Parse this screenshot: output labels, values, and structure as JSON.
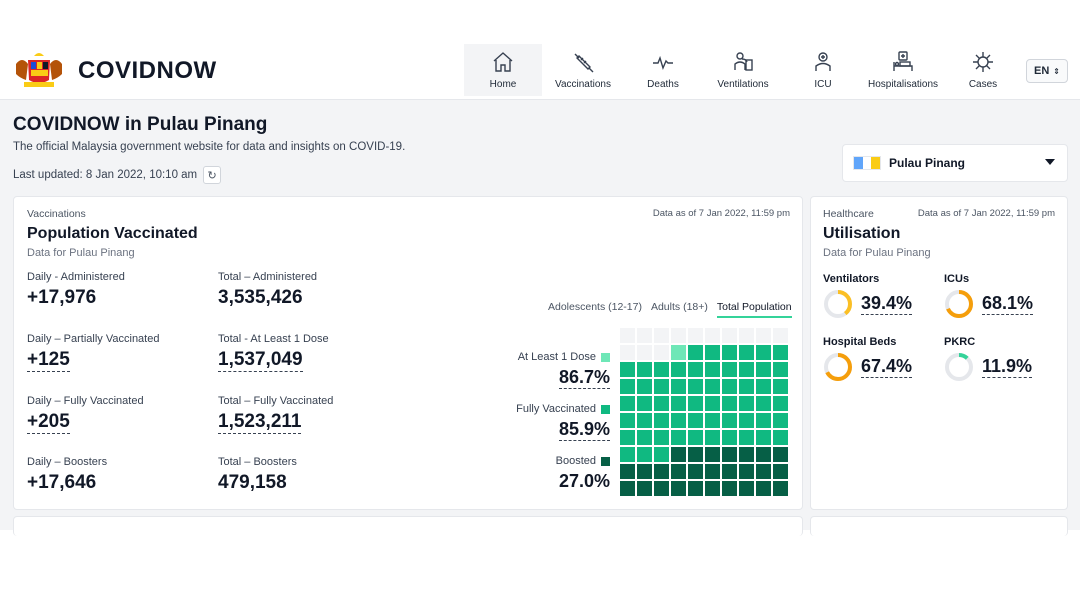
{
  "header": {
    "brand": "COVIDNOW",
    "nav": [
      {
        "label": "Home",
        "icon": "home-icon",
        "active": true
      },
      {
        "label": "Vaccinations",
        "icon": "syringe-icon"
      },
      {
        "label": "Deaths",
        "icon": "pulse-icon"
      },
      {
        "label": "Ventilations",
        "icon": "ventilator-icon"
      },
      {
        "label": "ICU",
        "icon": "icu-icon"
      },
      {
        "label": "Hospitalisations",
        "icon": "hospital-bed-icon"
      },
      {
        "label": "Cases",
        "icon": "virus-icon"
      }
    ],
    "language": "EN"
  },
  "page": {
    "title": "COVIDNOW in Pulau Pinang",
    "subtitle": "The official Malaysia government website for data and insights on COVID-19.",
    "last_updated": "Last updated: 8 Jan 2022, 10:10 am",
    "state_select": "Pulau Pinang"
  },
  "vaccination": {
    "eyebrow": "Vaccinations",
    "title": "Population Vaccinated",
    "subtitle": "Data for Pulau Pinang",
    "as_of": "Data as of 7 Jan 2022, 11:59 pm",
    "stats": [
      {
        "label": "Daily - Administered",
        "value": "+17,976",
        "dotted": false
      },
      {
        "label": "Total – Administered",
        "value": "3,535,426",
        "dotted": false
      },
      {
        "label": "Daily – Partially Vaccinated",
        "value": "+125",
        "dotted": true
      },
      {
        "label": "Total - At Least 1 Dose",
        "value": "1,537,049",
        "dotted": true
      },
      {
        "label": "Daily – Fully Vaccinated",
        "value": "+205",
        "dotted": true
      },
      {
        "label": "Total – Fully Vaccinated",
        "value": "1,523,211",
        "dotted": true
      },
      {
        "label": "Daily – Boosters",
        "value": "+17,646",
        "dotted": false
      },
      {
        "label": "Total – Boosters",
        "value": "479,158",
        "dotted": false
      }
    ],
    "tabs": [
      "Adolescents (12-17)",
      "Adults (18+)",
      "Total Population"
    ],
    "active_tab": 2,
    "legend": [
      {
        "label": "At Least 1 Dose",
        "value": "86.7%",
        "pct": 86.7,
        "color": "#6ee7b7",
        "dotted": true
      },
      {
        "label": "Fully Vaccinated",
        "value": "85.9%",
        "pct": 85.9,
        "color": "#10b981",
        "dotted": true
      },
      {
        "label": "Boosted",
        "value": "27.0%",
        "pct": 27.0,
        "color": "#065f46",
        "dotted": false
      }
    ]
  },
  "healthcare": {
    "eyebrow": "Healthcare",
    "title": "Utilisation",
    "subtitle": "Data for Pulau Pinang",
    "as_of": "Data as of 7 Jan 2022, 11:59 pm",
    "items": [
      {
        "label": "Ventilators",
        "value": "39.4%",
        "pct": 39.4,
        "color": "#fbbf24"
      },
      {
        "label": "ICUs",
        "value": "68.1%",
        "pct": 68.1,
        "color": "#f59e0b"
      },
      {
        "label": "Hospital Beds",
        "value": "67.4%",
        "pct": 67.4,
        "color": "#f59e0b"
      },
      {
        "label": "PKRC",
        "value": "11.9%",
        "pct": 11.9,
        "color": "#34d399"
      }
    ]
  },
  "colors": {
    "accent": "#34d399",
    "ring_track": "#e5e7eb",
    "waffle_empty": "#f3f4f6"
  }
}
